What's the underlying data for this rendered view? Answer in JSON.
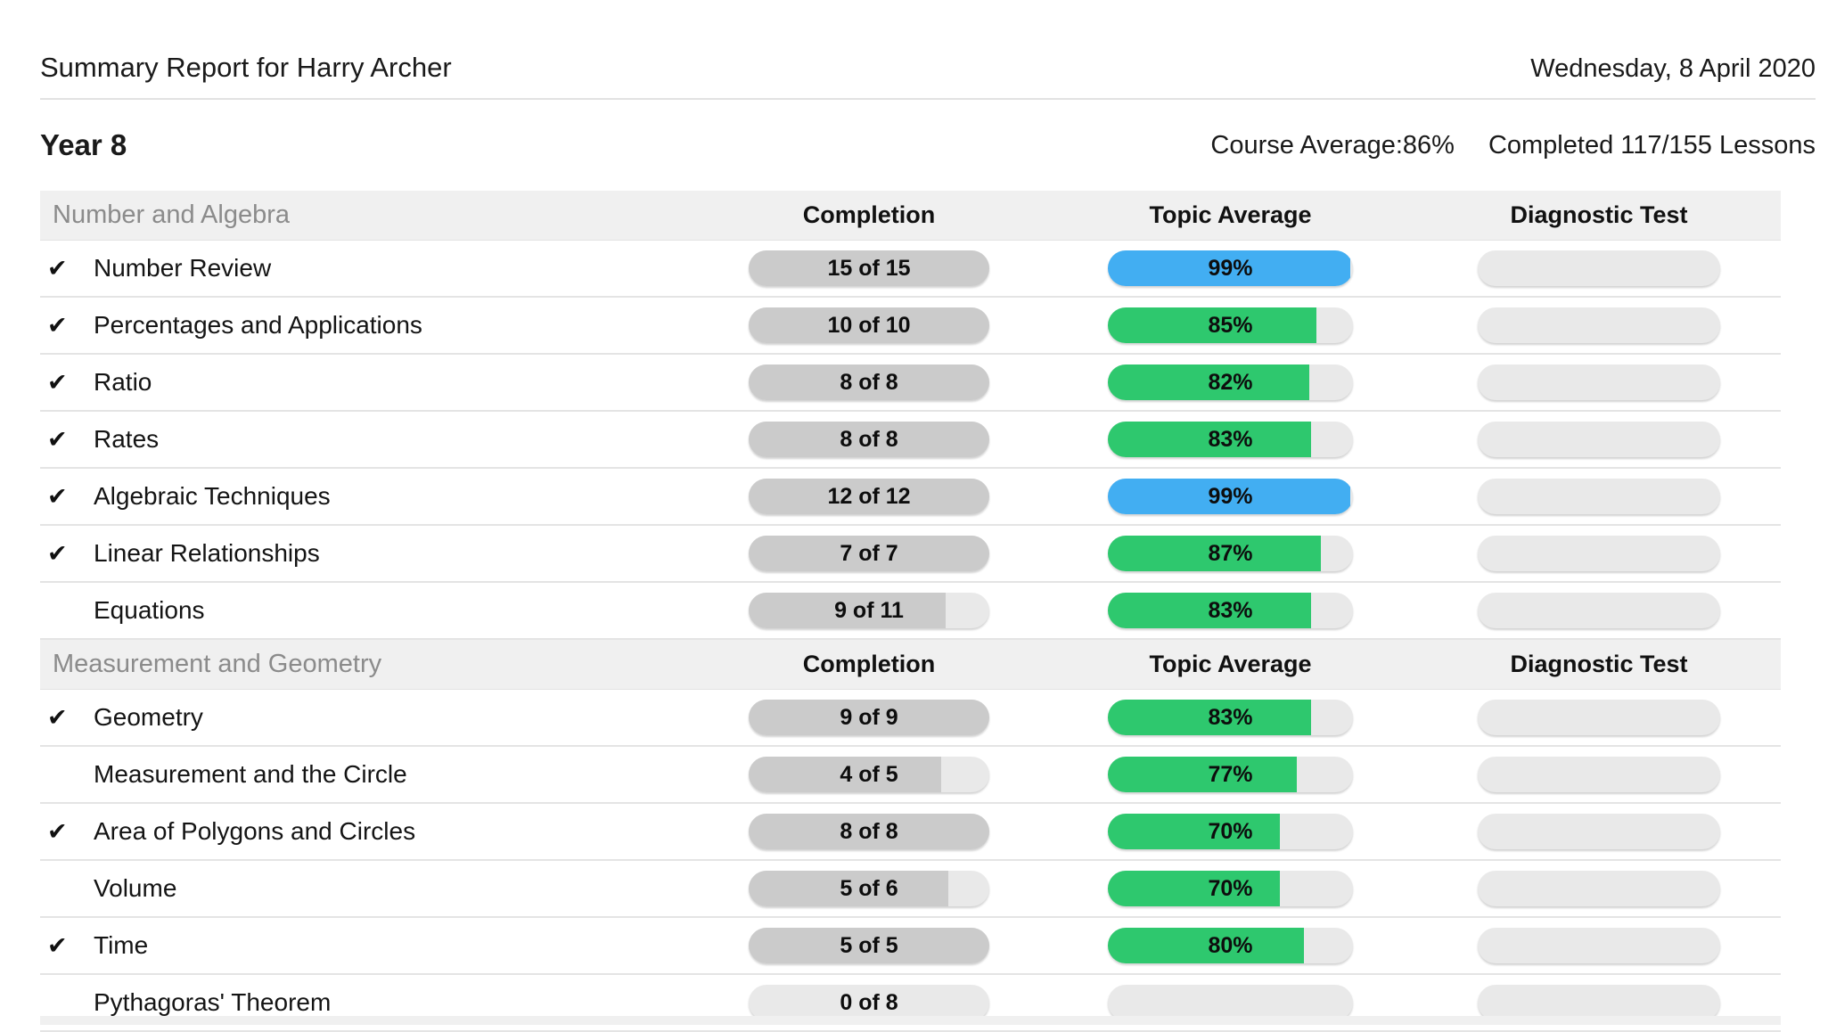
{
  "page": {
    "title": "Summary Report for Harry Archer",
    "date": "Wednesday, 8 April 2020",
    "course_name": "Year 8",
    "course_average_label": "Course Average:",
    "course_average_value": "86%",
    "completed_lessons": "Completed 117/155 Lessons"
  },
  "columns": {
    "completion": "Completion",
    "topic_average": "Topic Average",
    "diagnostic_test": "Diagnostic Test"
  },
  "icons": {
    "check": "✔"
  },
  "colors": {
    "green": "#2ec86e",
    "blue": "#42aef2",
    "completion_fill": "#cbcbcb",
    "pill_track": "#e9e9e9",
    "section_bg": "#f0f0f0"
  },
  "sections": [
    {
      "name": "Number and Algebra",
      "rows": [
        {
          "topic": "Number Review",
          "completed": true,
          "completion_text": "15 of 15",
          "completion_pct": 100,
          "average_text": "99%",
          "average_pct": 99,
          "average_color": "blue"
        },
        {
          "topic": "Percentages and Applications",
          "completed": true,
          "completion_text": "10 of 10",
          "completion_pct": 100,
          "average_text": "85%",
          "average_pct": 85,
          "average_color": "green"
        },
        {
          "topic": "Ratio",
          "completed": true,
          "completion_text": "8 of 8",
          "completion_pct": 100,
          "average_text": "82%",
          "average_pct": 82,
          "average_color": "green"
        },
        {
          "topic": "Rates",
          "completed": true,
          "completion_text": "8 of 8",
          "completion_pct": 100,
          "average_text": "83%",
          "average_pct": 83,
          "average_color": "green"
        },
        {
          "topic": "Algebraic Techniques",
          "completed": true,
          "completion_text": "12 of 12",
          "completion_pct": 100,
          "average_text": "99%",
          "average_pct": 99,
          "average_color": "blue"
        },
        {
          "topic": "Linear Relationships",
          "completed": true,
          "completion_text": "7 of 7",
          "completion_pct": 100,
          "average_text": "87%",
          "average_pct": 87,
          "average_color": "green"
        },
        {
          "topic": "Equations",
          "completed": false,
          "completion_text": "9 of 11",
          "completion_pct": 82,
          "average_text": "83%",
          "average_pct": 83,
          "average_color": "green"
        }
      ]
    },
    {
      "name": "Measurement and Geometry",
      "rows": [
        {
          "topic": "Geometry",
          "completed": true,
          "completion_text": "9 of 9",
          "completion_pct": 100,
          "average_text": "83%",
          "average_pct": 83,
          "average_color": "green"
        },
        {
          "topic": "Measurement and the Circle",
          "completed": false,
          "completion_text": "4 of 5",
          "completion_pct": 80,
          "average_text": "77%",
          "average_pct": 77,
          "average_color": "green"
        },
        {
          "topic": "Area of Polygons and Circles",
          "completed": true,
          "completion_text": "8 of 8",
          "completion_pct": 100,
          "average_text": "70%",
          "average_pct": 70,
          "average_color": "green"
        },
        {
          "topic": "Volume",
          "completed": false,
          "completion_text": "5 of 6",
          "completion_pct": 83,
          "average_text": "70%",
          "average_pct": 70,
          "average_color": "green"
        },
        {
          "topic": "Time",
          "completed": true,
          "completion_text": "5 of 5",
          "completion_pct": 100,
          "average_text": "80%",
          "average_pct": 80,
          "average_color": "green"
        },
        {
          "topic": "Pythagoras' Theorem",
          "completed": false,
          "completion_text": "0 of 8",
          "completion_pct": 0,
          "average_text": "",
          "average_pct": 0,
          "average_color": "none"
        }
      ]
    }
  ]
}
